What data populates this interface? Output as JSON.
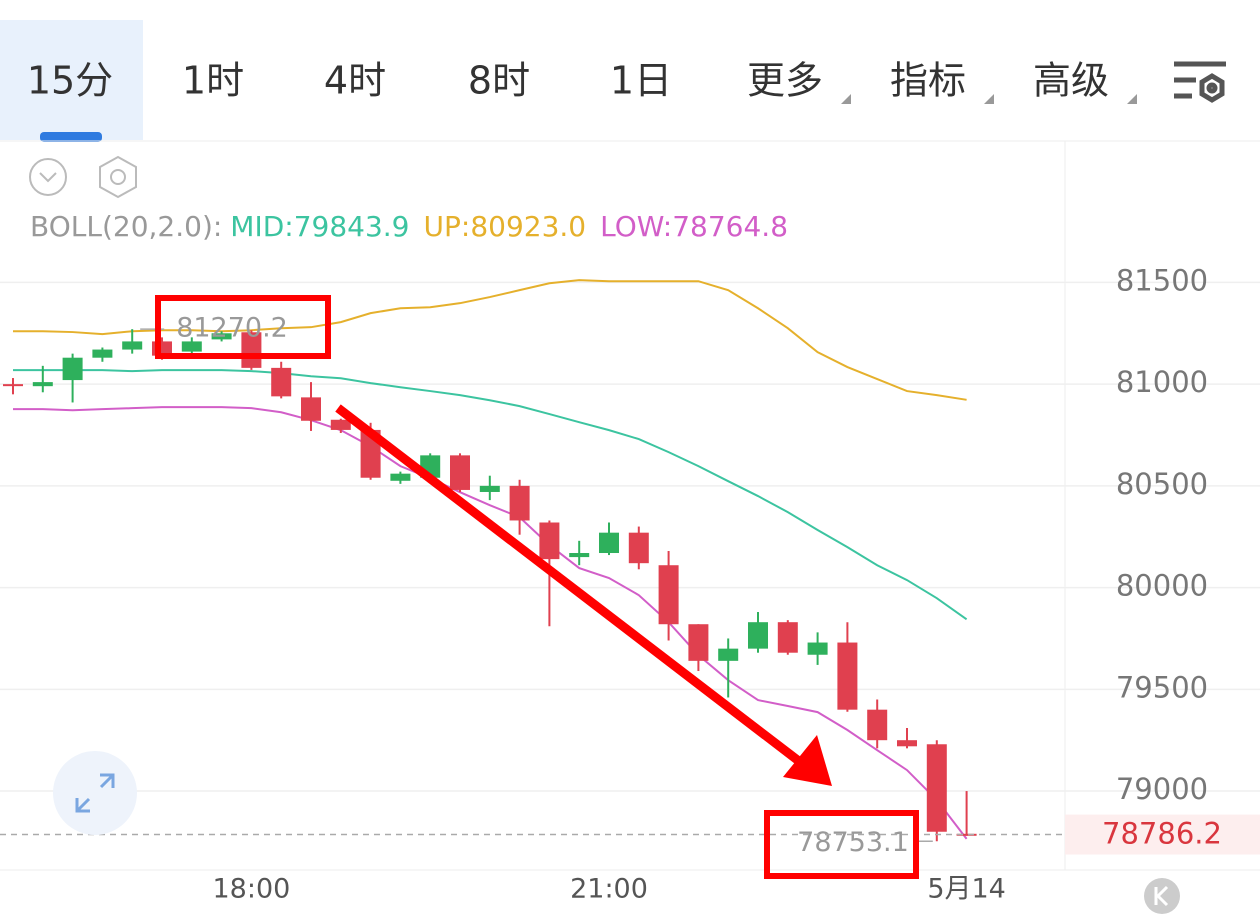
{
  "tabs": {
    "items": [
      "15分",
      "1时",
      "4时",
      "8时",
      "1日",
      "更多",
      "指标",
      "高级"
    ],
    "selected_index": 0
  },
  "chart_data": {
    "type": "candlestick",
    "indicator": "BOLL(20,2.0):",
    "categories": [
      null,
      null,
      null,
      null,
      null,
      null,
      null,
      null,
      "18:00",
      null,
      null,
      null,
      null,
      null,
      null,
      null,
      null,
      null,
      null,
      null,
      "21:00",
      null,
      null,
      null,
      null,
      null,
      null,
      null,
      null,
      null,
      null,
      null,
      "5月14"
    ],
    "open": [
      81000,
      80990,
      81020,
      81130,
      81170,
      81210,
      81160,
      81220,
      81255,
      81080,
      80935,
      80825,
      80775,
      80525,
      80540,
      80650,
      80470,
      80500,
      80320,
      80150,
      80170,
      80270,
      80110,
      79820,
      79640,
      79700,
      79830,
      79670,
      79730,
      79400,
      79250,
      79230,
      78790
    ],
    "high": [
      81030,
      81090,
      81150,
      81180,
      81270.2,
      81230,
      81230,
      81260,
      81265,
      81110,
      81010,
      80830,
      80810,
      80570,
      80660,
      80660,
      80550,
      80530,
      80330,
      80230,
      80320,
      80300,
      80180,
      79820,
      79750,
      79880,
      79840,
      79780,
      79830,
      79450,
      79310,
      79250,
      79000
    ],
    "low": [
      80950,
      80960,
      80910,
      81110,
      81150,
      81120,
      81130,
      81210,
      81070,
      80930,
      80770,
      80760,
      80530,
      80510,
      80530,
      80470,
      80430,
      80260,
      79810,
      80110,
      80160,
      80090,
      79740,
      79590,
      79460,
      79680,
      79670,
      79620,
      79390,
      79210,
      79210,
      78753.1,
      78780
    ],
    "close": [
      80995,
      81010,
      81130,
      81170,
      81210,
      81140,
      81210,
      81250,
      81080,
      80940,
      80820,
      80775,
      80540,
      80560,
      80650,
      80480,
      80500,
      80330,
      80140,
      80170,
      80270,
      80120,
      79820,
      79640,
      79700,
      79830,
      79680,
      79730,
      79400,
      79250,
      79220,
      78800,
      78786.2
    ],
    "up_color": "#2eb05c",
    "down_color": "#e0404f",
    "series": [
      {
        "name": "MID:79843.9",
        "color": "#3cc4a0",
        "values": [
          81069,
          81069,
          81069,
          81069,
          81064,
          81069,
          81069,
          81069,
          81064,
          81054,
          81039,
          81029,
          81005,
          80985,
          80966,
          80946,
          80921,
          80892,
          80853,
          80813,
          80774,
          80730,
          80666,
          80597,
          80523,
          80450,
          80371,
          80283,
          80199,
          80110,
          80037,
          79948,
          79843.9
        ]
      },
      {
        "name": "UP:80923.0",
        "color": "#e5b02c",
        "values": [
          81260,
          81260,
          81256,
          81246,
          81260,
          81265,
          81265,
          81260,
          81265,
          81275,
          81280,
          81305,
          81349,
          81373,
          81378,
          81398,
          81428,
          81462,
          81496,
          81511,
          81506,
          81506,
          81506,
          81506,
          81462,
          81373,
          81275,
          81157,
          81084,
          81025,
          80966,
          80946,
          80923.0
        ]
      },
      {
        "name": "LOW:78764.8",
        "color": "#d25ec8",
        "values": [
          80877,
          80877,
          80872,
          80877,
          80882,
          80887,
          80887,
          80887,
          80882,
          80862,
          80823,
          80774,
          80695,
          80597,
          80538,
          80469,
          80405,
          80346,
          80209,
          80096,
          80047,
          79963,
          79830,
          79668,
          79545,
          79447,
          79418,
          79388,
          79300,
          79201,
          79103,
          78956,
          78764.8
        ]
      }
    ],
    "ylim": [
      78612,
      82200
    ],
    "yticks": [
      79000,
      79500,
      80000,
      80500,
      81000,
      81500
    ],
    "grid": true,
    "max_marker": 81270.2,
    "min_marker": 78753.1,
    "last_price": 78786.2
  }
}
